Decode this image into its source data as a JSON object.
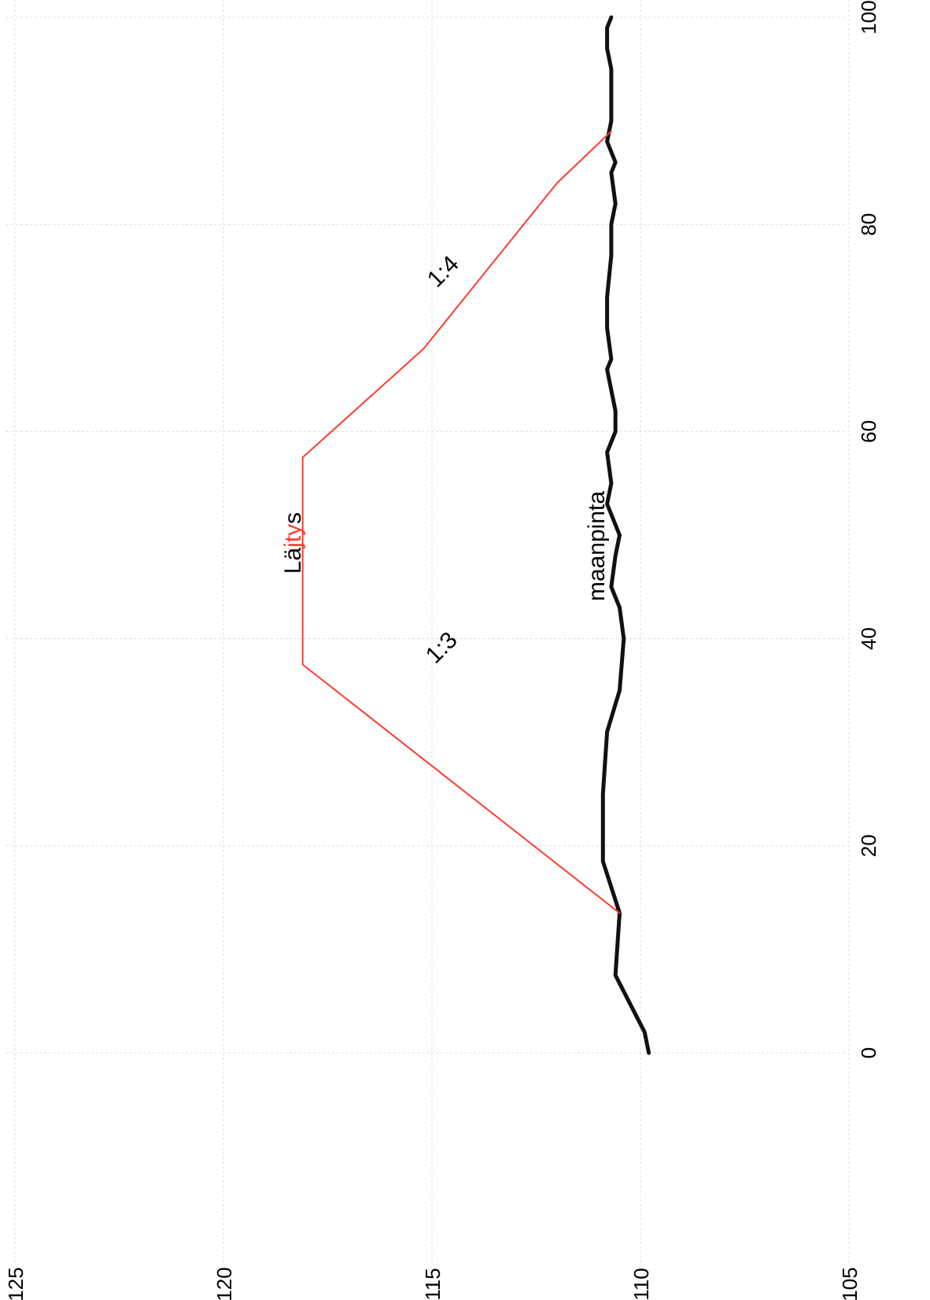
{
  "chart_data": {
    "type": "line",
    "title": "",
    "xlabel": "",
    "ylabel": "",
    "xlim": [
      -13,
      102
    ],
    "ylim": [
      105,
      125
    ],
    "xticks": [
      0,
      20,
      40,
      60,
      80,
      100
    ],
    "yticks": [
      105,
      110,
      115,
      120,
      125
    ],
    "grid": true,
    "orientation": "rotated 90° (x axis runs vertically along the right edge, y axis along the bottom)",
    "series": [
      {
        "color": "#111111",
        "x": [
          0,
          2,
          7.5,
          13.5,
          18.5,
          25,
          31,
          35,
          40,
          43,
          45,
          48,
          50,
          53,
          55,
          58,
          60,
          62,
          66,
          67,
          70,
          73,
          77,
          80,
          82,
          85,
          86,
          88,
          90,
          92,
          95,
          97,
          99,
          100
        ],
        "y": [
          109.8,
          109.9,
          110.6,
          110.5,
          110.9,
          110.9,
          110.8,
          110.5,
          110.4,
          110.5,
          110.7,
          110.6,
          110.5,
          110.8,
          110.7,
          110.8,
          110.6,
          110.6,
          110.8,
          110.7,
          110.8,
          110.8,
          110.7,
          110.7,
          110.6,
          110.7,
          110.6,
          110.8,
          110.7,
          110.7,
          110.7,
          110.8,
          110.8,
          110.7
        ]
      },
      {
        "color": "#ff3b30",
        "x": [
          13.5,
          37.5,
          57.5,
          68,
          84,
          89
        ],
        "y": [
          110.5,
          118.1,
          118.1,
          115.2,
          112.0,
          110.7
        ]
      }
    ],
    "annotations": {
      "slope_left": "1:3",
      "slope_right": "1:4",
      "top_label_black_1": "Lä",
      "top_label_red": "jty",
      "top_label_black_2": "s",
      "ground_label": "maanpinta"
    }
  }
}
